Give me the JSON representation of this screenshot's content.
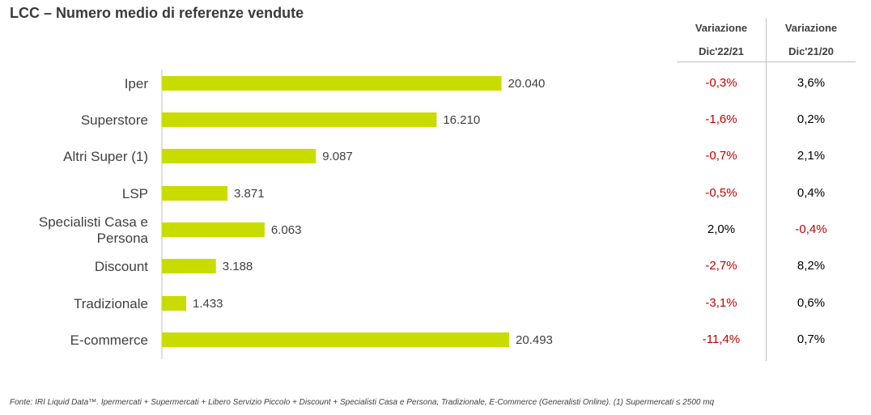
{
  "title": "LCC – Numero medio di referenze vendute",
  "table": {
    "col1_head": [
      "Variazione",
      "Dic'22/21"
    ],
    "col2_head": [
      "Variazione",
      "Dic'21/20"
    ]
  },
  "colors": {
    "bar": "#c8dc00",
    "negative": "#c00000",
    "positive": "#000000",
    "text": "#404040"
  },
  "chart_data": {
    "type": "bar",
    "orientation": "horizontal",
    "categories": [
      "Iper",
      "Superstore",
      "Altri Super (1)",
      "LSP",
      "Specialisti Casa e Persona",
      "Discount",
      "Tradizionale",
      "E-commerce"
    ],
    "category_lines": [
      [
        "Iper"
      ],
      [
        "Superstore"
      ],
      [
        "Altri Super (1)"
      ],
      [
        "LSP"
      ],
      [
        "Specialisti Casa e",
        "Persona"
      ],
      [
        "Discount"
      ],
      [
        "Tradizionale"
      ],
      [
        "E-commerce"
      ]
    ],
    "values": [
      20040,
      16210,
      9087,
      3871,
      6063,
      3188,
      1433,
      20493
    ],
    "value_labels": [
      "20.040",
      "16.210",
      "9.087",
      "3.871",
      "6.063",
      "3.188",
      "1.433",
      "20.493"
    ],
    "var_22_21": [
      "-0,3%",
      "-1,6%",
      "-0,7%",
      "-0,5%",
      "2,0%",
      "-2,7%",
      "-3,1%",
      "-11,4%"
    ],
    "var_21_20": [
      "3,6%",
      "0,2%",
      "2,1%",
      "0,4%",
      "-0,4%",
      "8,2%",
      "0,6%",
      "0,7%"
    ],
    "xlim": [
      0,
      20493
    ]
  },
  "footer": "Fonte: IRI Liquid Data™.  Ipermercati + Supermercati + Libero Servizio Piccolo + Discount + Specialisti Casa e Persona, Tradizionale, E-Commerce (Generalisti Online). (1) Supermercati ≤ 2500 mq"
}
